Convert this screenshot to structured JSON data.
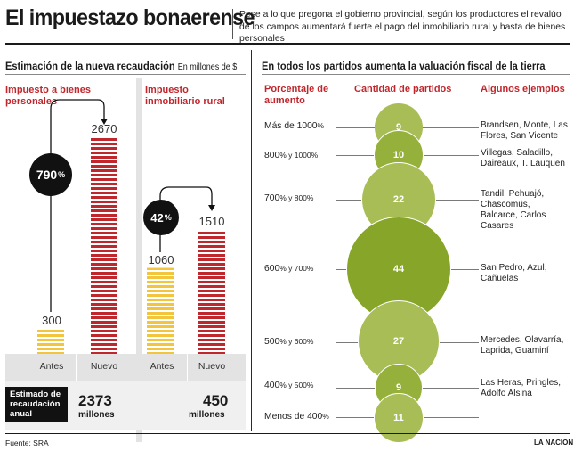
{
  "header": {
    "title": "El impuestazo bonaerense",
    "subtitle": "Pese a lo que pregona el gobierno provincial, según los productores el revalúo de los campos aumentará fuerte el pago del inmobiliario rural y hasta de bienes personales"
  },
  "left_panel": {
    "title": "Estimación de la nueva recaudación",
    "units": "En millones de $",
    "estimate_label": "Estimado de recaudación anual",
    "groups": [
      {
        "label": "Impuesto a bienes personales",
        "before": 300,
        "after": 2670,
        "change": "790",
        "change_suffix": "%",
        "estimate_value": "2373",
        "estimate_unit": "millones"
      },
      {
        "label": "Impuesto inmobiliario rural",
        "before": 1060,
        "after": 1510,
        "change": "42",
        "change_suffix": "%",
        "estimate_value": "450",
        "estimate_unit": "millones"
      }
    ],
    "axis_labels": {
      "before": "Antes",
      "after": "Nuevo"
    }
  },
  "right_panel": {
    "title": "En todos los partidos aumenta la valuación fiscal de la tierra",
    "col_headers": {
      "range": "Porcentaje de aumento",
      "count": "Cantidad de partidos",
      "examples": "Algunos ejemplos"
    },
    "rows": [
      {
        "range_main": "Más de 1000",
        "range_sign": "%",
        "count": 9,
        "examples": "Brandsen, Monte, Las Flores, San Vicente"
      },
      {
        "range_main": "800",
        "range_sign": "% y 1000%",
        "count": 10,
        "examples": "Villegas, Saladillo, Daireaux, T. Lauquen"
      },
      {
        "range_main": "700",
        "range_sign": "% y 800%",
        "count": 22,
        "examples": "Tandil, Pehuajó, Chascomús, Balcarce, Carlos Casares"
      },
      {
        "range_main": "600",
        "range_sign": "% y 700%",
        "count": 44,
        "examples": "San Pedro, Azul, Cañuelas"
      },
      {
        "range_main": "500",
        "range_sign": "% y 600%",
        "count": 27,
        "examples": "Mercedes, Olavarría, Laprida, Guaminí"
      },
      {
        "range_main": "400",
        "range_sign": "% y 500%",
        "count": 9,
        "examples": "Las Heras, Pringles, Adolfo Alsina"
      },
      {
        "range_main": "Menos de 400",
        "range_sign": "%",
        "count": 11,
        "examples": ""
      }
    ]
  },
  "chart_data": [
    {
      "type": "bar",
      "title": "Estimación de la nueva recaudación",
      "ylabel": "En millones de $",
      "categories": [
        "Antes",
        "Nuevo"
      ],
      "series": [
        {
          "name": "Impuesto a bienes personales",
          "values": [
            300,
            2670
          ]
        },
        {
          "name": "Impuesto inmobiliario rural",
          "values": [
            1060,
            1510
          ]
        }
      ],
      "annotations": [
        "790%",
        "42%"
      ]
    },
    {
      "type": "bubble",
      "title": "En todos los partidos aumenta la valuación fiscal de la tierra",
      "categories": [
        "Más de 1000%",
        "800% y 1000%",
        "700% y 800%",
        "600% y 700%",
        "500% y 600%",
        "400% y 500%",
        "Menos de 400%"
      ],
      "values": [
        9,
        10,
        22,
        44,
        27,
        9,
        11
      ]
    }
  ],
  "footer": {
    "source": "Fuente: SRA",
    "credit": "LA NACION"
  },
  "colors": {
    "red": "#c0272d",
    "yellow": "#f2c53d",
    "green_dark": "#87a529",
    "green_light": "#a8bd55"
  }
}
